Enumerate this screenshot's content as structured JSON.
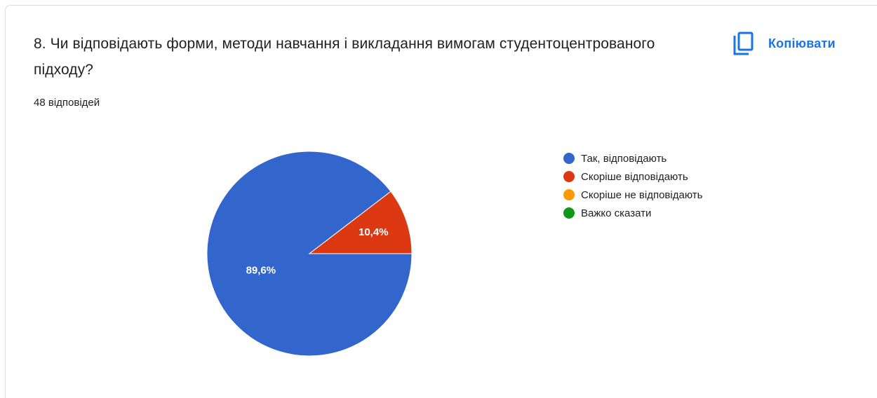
{
  "question": {
    "title": "8. Чи відповідають форми, методи навчання і викладання вимогам студентоцентрованого підходу?",
    "response_count": "48 відповідей"
  },
  "actions": {
    "copy_label": "Копіювати",
    "copy_icon": "copy-icon"
  },
  "colors": {
    "accent": "#1a73e8"
  },
  "chart_data": {
    "type": "pie",
    "categories": [
      "Так, відповідають",
      "Скоріше відповідають",
      "Скоріше не відповідають",
      "Важко сказати"
    ],
    "values": [
      89.6,
      10.4,
      0,
      0
    ],
    "labels": [
      "89,6%",
      "10,4%",
      "",
      ""
    ],
    "colors": [
      "#3366cc",
      "#dc3912",
      "#ff9900",
      "#109618"
    ],
    "legend_position": "right"
  }
}
